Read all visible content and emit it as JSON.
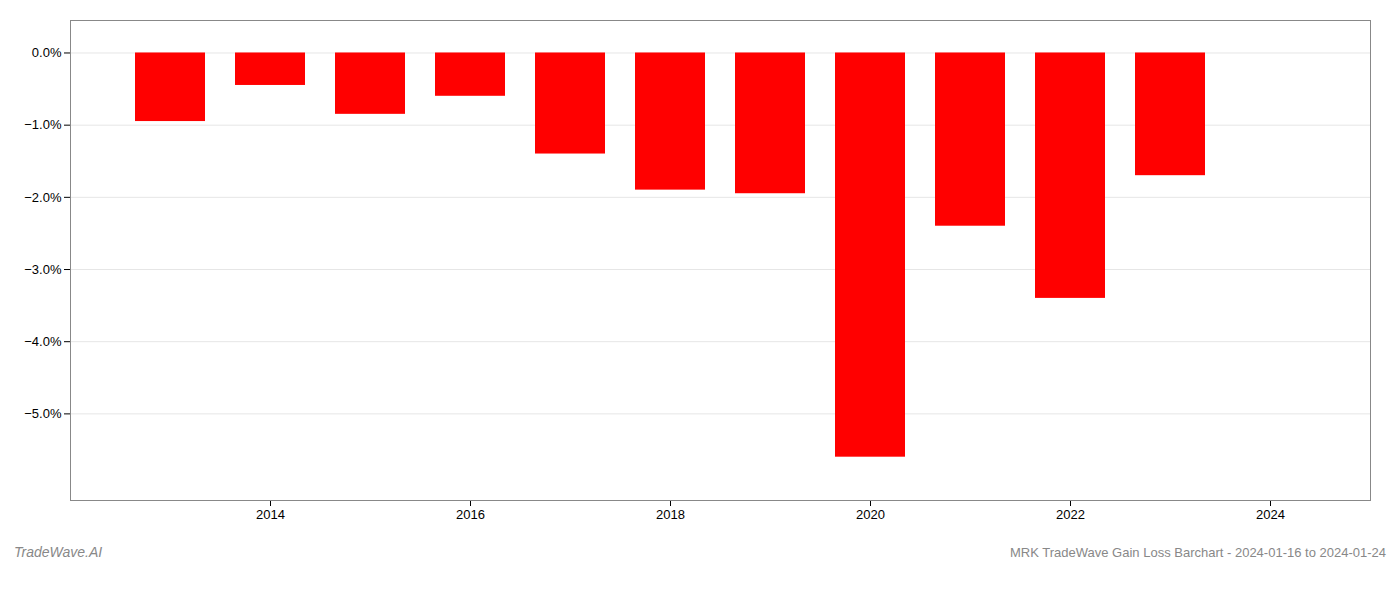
{
  "chart_data": {
    "type": "bar",
    "title": "MRK TradeWave Gain Loss Barchart - 2024-01-16 to 2024-01-24",
    "annotations": [
      "TradeWave.AI"
    ],
    "x": [
      2013,
      2014,
      2015,
      2016,
      2017,
      2018,
      2019,
      2020,
      2021,
      2022,
      2023
    ],
    "values": [
      -0.0095,
      -0.0045,
      -0.0085,
      -0.006,
      -0.014,
      -0.019,
      -0.0195,
      -0.056,
      -0.024,
      -0.034,
      -0.017
    ],
    "color": "#ff0000",
    "xlim": [
      2012.0,
      2025.0
    ],
    "xticks": [
      2014,
      2016,
      2018,
      2020,
      2022,
      2024
    ],
    "ylim": [
      -0.062,
      0.0045
    ],
    "yticks": [
      {
        "value": 0.0,
        "label": "0.0%"
      },
      {
        "value": -0.01,
        "label": "−1.0%"
      },
      {
        "value": -0.02,
        "label": "−2.0%"
      },
      {
        "value": -0.03,
        "label": "−3.0%"
      },
      {
        "value": -0.04,
        "label": "−4.0%"
      },
      {
        "value": -0.05,
        "label": "−5.0%"
      }
    ],
    "grid": true
  }
}
